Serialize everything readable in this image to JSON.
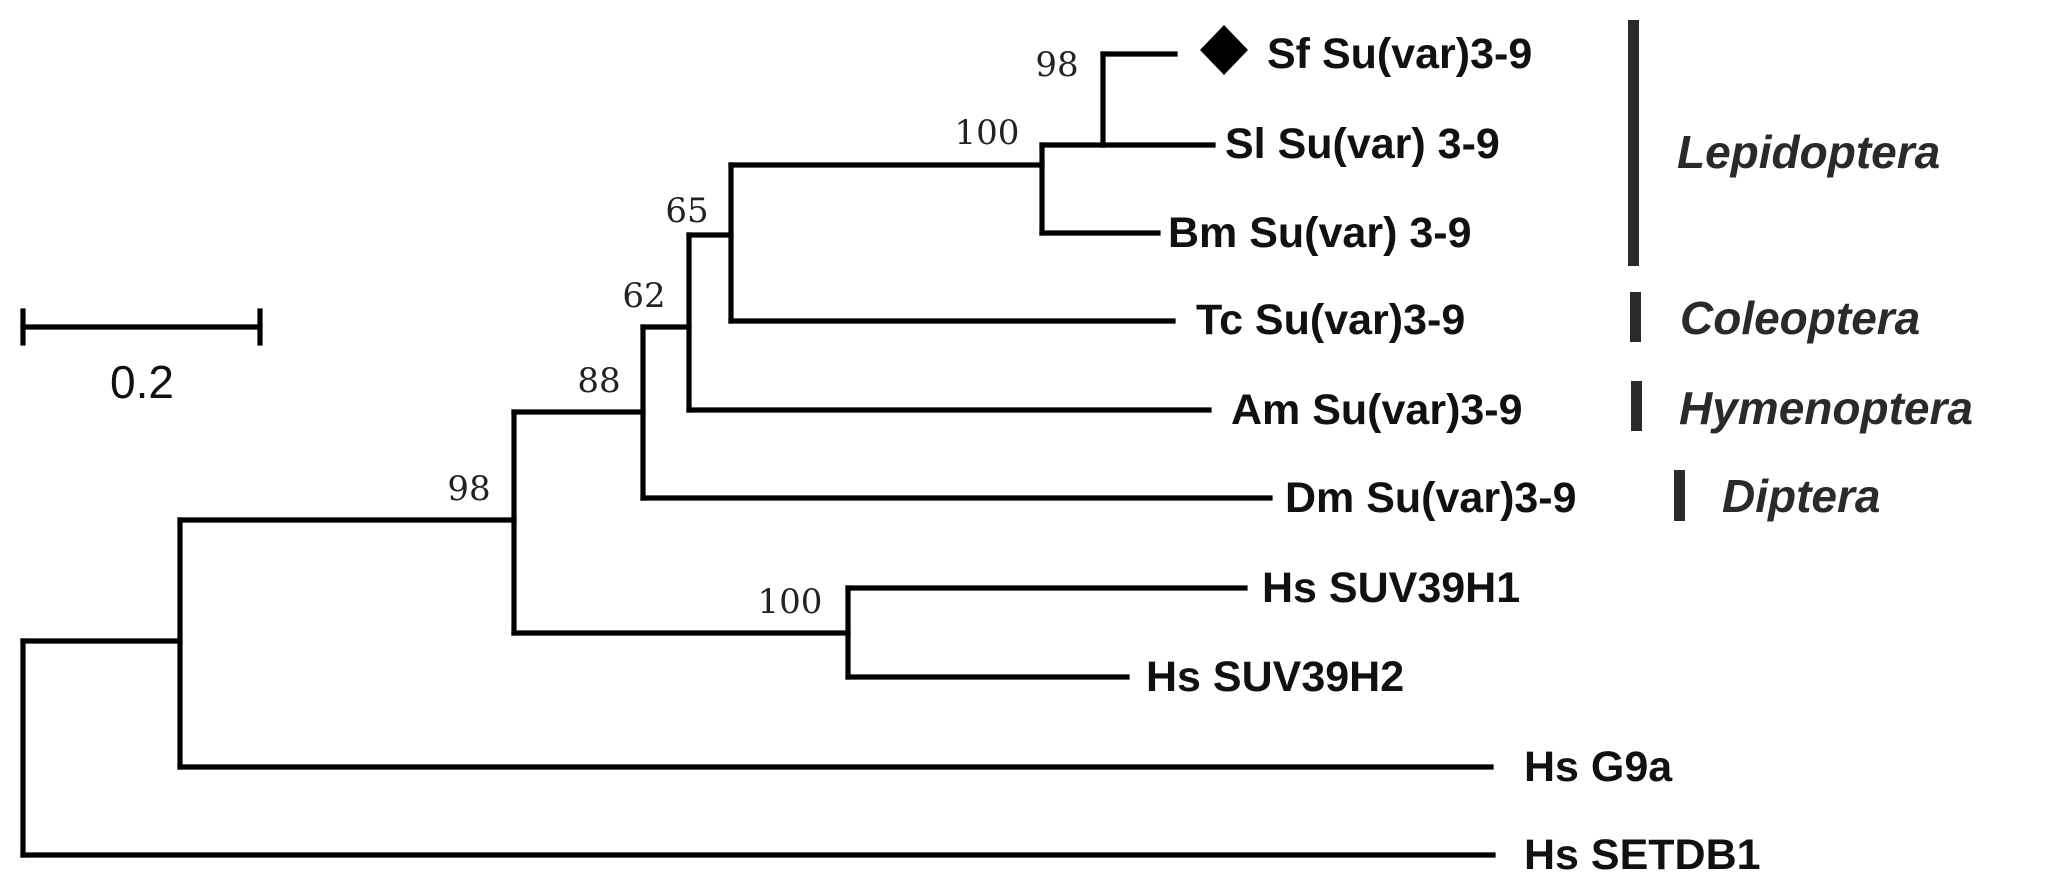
{
  "tree": {
    "scale_bar": {
      "label": "0.2"
    },
    "marker": {
      "icon": "diamond-icon",
      "taxon": "Sf Su(var)3-9"
    },
    "taxa": [
      {
        "key": "sf",
        "label": "Sf Su(var)3-9"
      },
      {
        "key": "sl",
        "label": "Sl Su(var) 3-9"
      },
      {
        "key": "bm",
        "label": "Bm Su(var) 3-9"
      },
      {
        "key": "tc",
        "label": "Tc Su(var)3-9"
      },
      {
        "key": "am",
        "label": "Am Su(var)3-9"
      },
      {
        "key": "dm",
        "label": "Dm Su(var)3-9"
      },
      {
        "key": "h1",
        "label": "Hs SUV39H1"
      },
      {
        "key": "h2",
        "label": "Hs SUV39H2"
      },
      {
        "key": "g9a",
        "label": "Hs G9a"
      },
      {
        "key": "setdb1",
        "label": "Hs SETDB1"
      }
    ],
    "bootstrap": [
      {
        "key": "sf-sl",
        "label": "98"
      },
      {
        "key": "lepido",
        "label": "100"
      },
      {
        "key": "lep-tc",
        "label": "65"
      },
      {
        "key": "insect-am",
        "label": "62"
      },
      {
        "key": "insects",
        "label": "88"
      },
      {
        "key": "suv39",
        "label": "98"
      },
      {
        "key": "human-suv",
        "label": "100"
      }
    ],
    "clades": [
      {
        "key": "lepidoptera",
        "label": "Lepidoptera"
      },
      {
        "key": "coleoptera",
        "label": "Coleoptera"
      },
      {
        "key": "hymenoptera",
        "label": "Hymenoptera"
      },
      {
        "key": "diptera",
        "label": "Diptera"
      }
    ]
  }
}
